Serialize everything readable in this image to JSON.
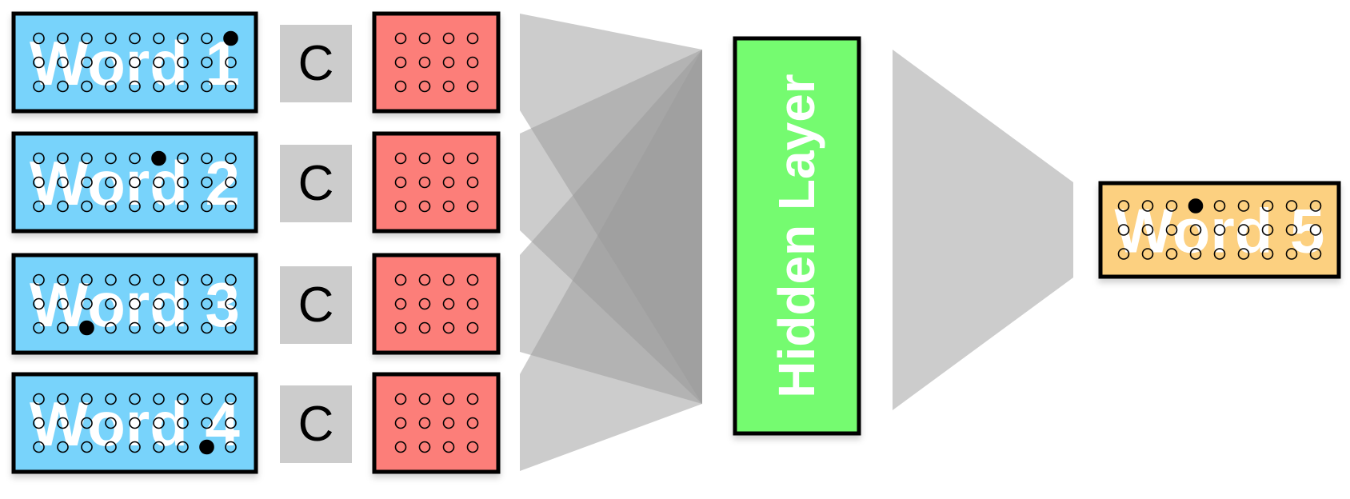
{
  "input_words": [
    {
      "label": "Word 1",
      "active_dot": [
        0,
        8
      ]
    },
    {
      "label": "Word 2",
      "active_dot": [
        0,
        5
      ]
    },
    {
      "label": "Word 3",
      "active_dot": [
        2,
        2
      ]
    },
    {
      "label": "Word 4",
      "active_dot": [
        2,
        7
      ]
    }
  ],
  "projection_label": "C",
  "hidden_layer_label": "Hidden Layer",
  "output_word": {
    "label": "Word 5",
    "active_dot": [
      0,
      3
    ]
  },
  "colors": {
    "input": "#78d3fb",
    "embedding": "#fc7e79",
    "hidden": "#74fb70",
    "output": "#fcd080",
    "projection": "#cccccc",
    "stroke": "#000000",
    "fan": "#9a9a9a"
  }
}
